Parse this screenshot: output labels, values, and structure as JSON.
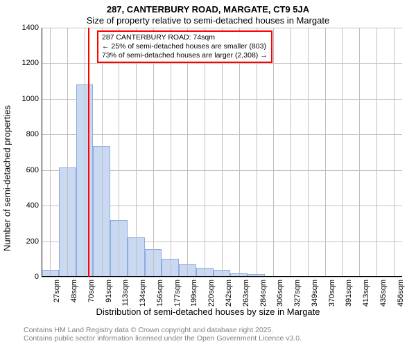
{
  "title": "287, CANTERBURY ROAD, MARGATE, CT9 5JA",
  "subtitle": "Size of property relative to semi-detached houses in Margate",
  "ylabel": "Number of semi-detached properties",
  "xlabel": "Distribution of semi-detached houses by size in Margate",
  "chart": {
    "type": "histogram",
    "ylim": [
      0,
      1400
    ],
    "ytick_step": 200,
    "yticks": [
      0,
      200,
      400,
      600,
      800,
      1000,
      1200,
      1400
    ],
    "x_categories": [
      "27sqm",
      "48sqm",
      "70sqm",
      "91sqm",
      "113sqm",
      "134sqm",
      "156sqm",
      "177sqm",
      "199sqm",
      "220sqm",
      "242sqm",
      "263sqm",
      "284sqm",
      "306sqm",
      "327sqm",
      "349sqm",
      "370sqm",
      "391sqm",
      "413sqm",
      "435sqm",
      "456sqm"
    ],
    "values": [
      40,
      615,
      1080,
      735,
      320,
      220,
      155,
      100,
      70,
      50,
      40,
      20,
      15,
      0,
      0,
      0,
      0,
      0,
      0,
      0,
      0
    ],
    "bar_fill": "#c9d9f1",
    "bar_stroke": "#8faadc",
    "grid_color": "#bfbfbf",
    "background_color": "#ffffff",
    "marker_x_index": 2.2,
    "marker_color": "#ff0000",
    "bar_width_ratio": 1.0
  },
  "annotation": {
    "line1": "287 CANTERBURY ROAD: 74sqm",
    "line2": "← 25% of semi-detached houses are smaller (803)",
    "line3": "73% of semi-detached houses are larger (2,308) →",
    "border_color": "#ff0000"
  },
  "attribution": {
    "line1": "Contains HM Land Registry data © Crown copyright and database right 2025.",
    "line2": "Contains public sector information licensed under the Open Government Licence v3.0."
  }
}
